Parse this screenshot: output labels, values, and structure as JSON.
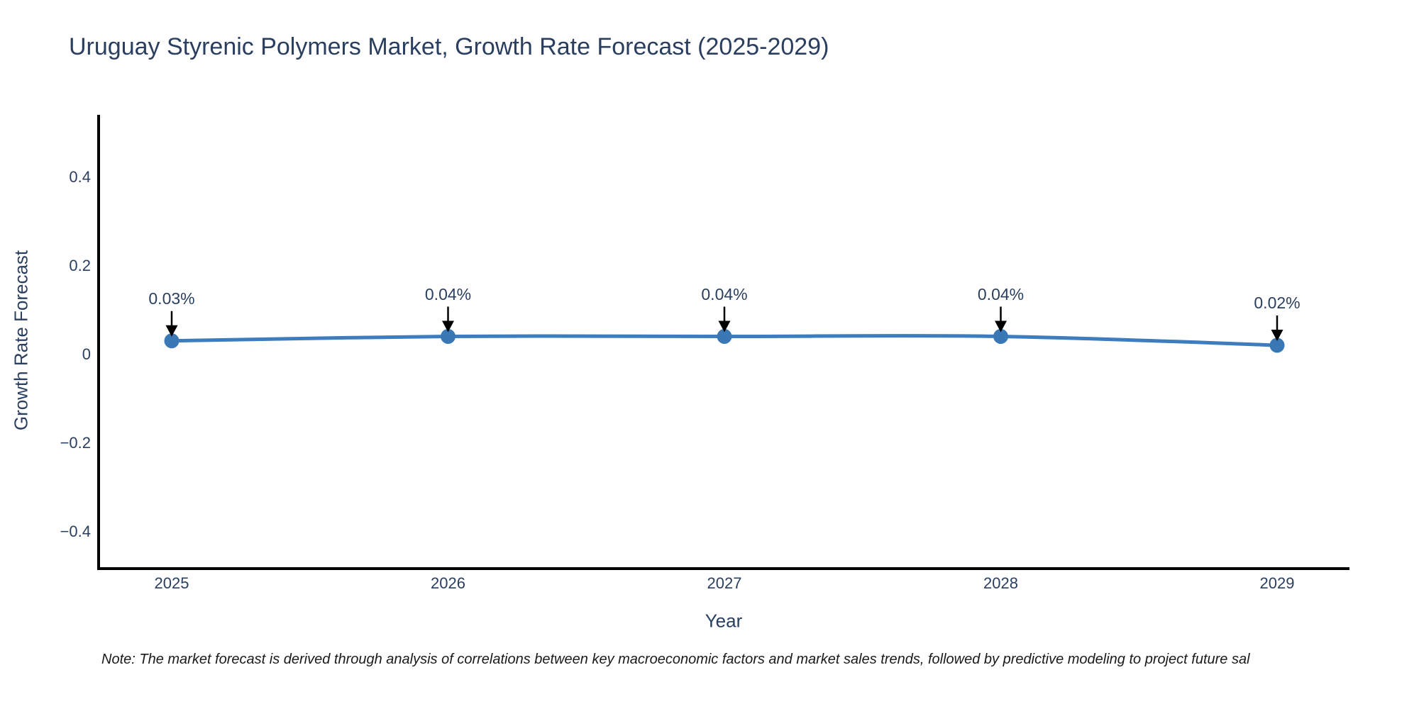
{
  "chart_data": {
    "type": "line",
    "title": "Uruguay Styrenic Polymers Market, Growth Rate Forecast (2025-2029)",
    "xlabel": "Year",
    "ylabel": "Growth Rate Forecast",
    "categories": [
      "2025",
      "2026",
      "2027",
      "2028",
      "2029"
    ],
    "series": [
      {
        "name": "Growth Rate Forecast",
        "values": [
          0.03,
          0.04,
          0.04,
          0.04,
          0.02
        ]
      }
    ],
    "point_labels": [
      "0.03%",
      "0.04%",
      "0.04%",
      "0.04%",
      "0.02%"
    ],
    "yticks": [
      0.4,
      0.2,
      0,
      -0.2,
      -0.4
    ],
    "ytick_labels": [
      "0.4",
      "0.2",
      "0",
      "−0.2",
      "−0.4"
    ],
    "ylim": [
      -0.49,
      0.54
    ],
    "grid": false,
    "legend": false,
    "background_color": "#ffffff",
    "line_color": "#3d7dbd",
    "marker_color": "#3a78b5",
    "axis_color": "#000000",
    "text_color": "#2a3f5f",
    "arrow_color": "#000000",
    "note": "Note: The market forecast is derived through analysis of correlations between key macroeconomic factors and market sales trends, followed by predictive modeling to project future sal"
  }
}
